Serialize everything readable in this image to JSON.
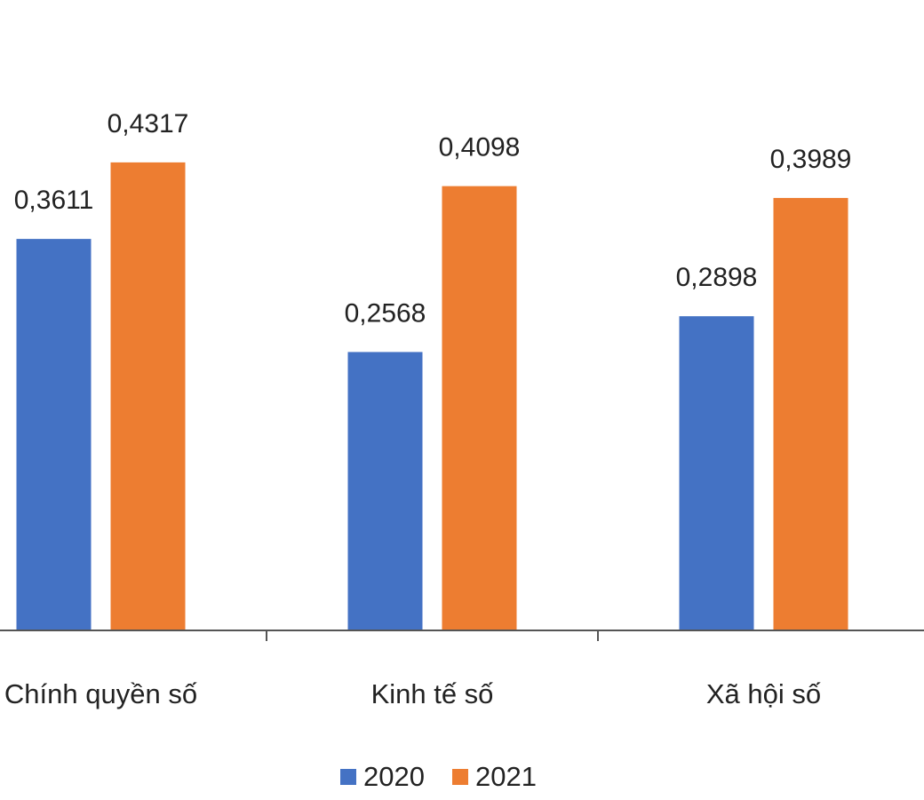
{
  "chart_data": {
    "type": "bar",
    "categories": [
      "Chính quyền số",
      "Kinh tế số",
      "Xã hội số"
    ],
    "series": [
      {
        "name": "2020",
        "values": [
          0.3611,
          0.2568,
          0.2898
        ],
        "labels": [
          "0,3611",
          "0,2568",
          "0,2898"
        ],
        "color": "#4472C4"
      },
      {
        "name": "2021",
        "values": [
          0.4317,
          0.4098,
          0.3989
        ],
        "labels": [
          "0,4317",
          "0,4098",
          "0,3989"
        ],
        "color": "#ED7D31"
      }
    ],
    "ylim": [
      0,
      0.5
    ],
    "grid": false,
    "legend_position": "bottom-center",
    "title": "",
    "xlabel": "",
    "ylabel": ""
  }
}
